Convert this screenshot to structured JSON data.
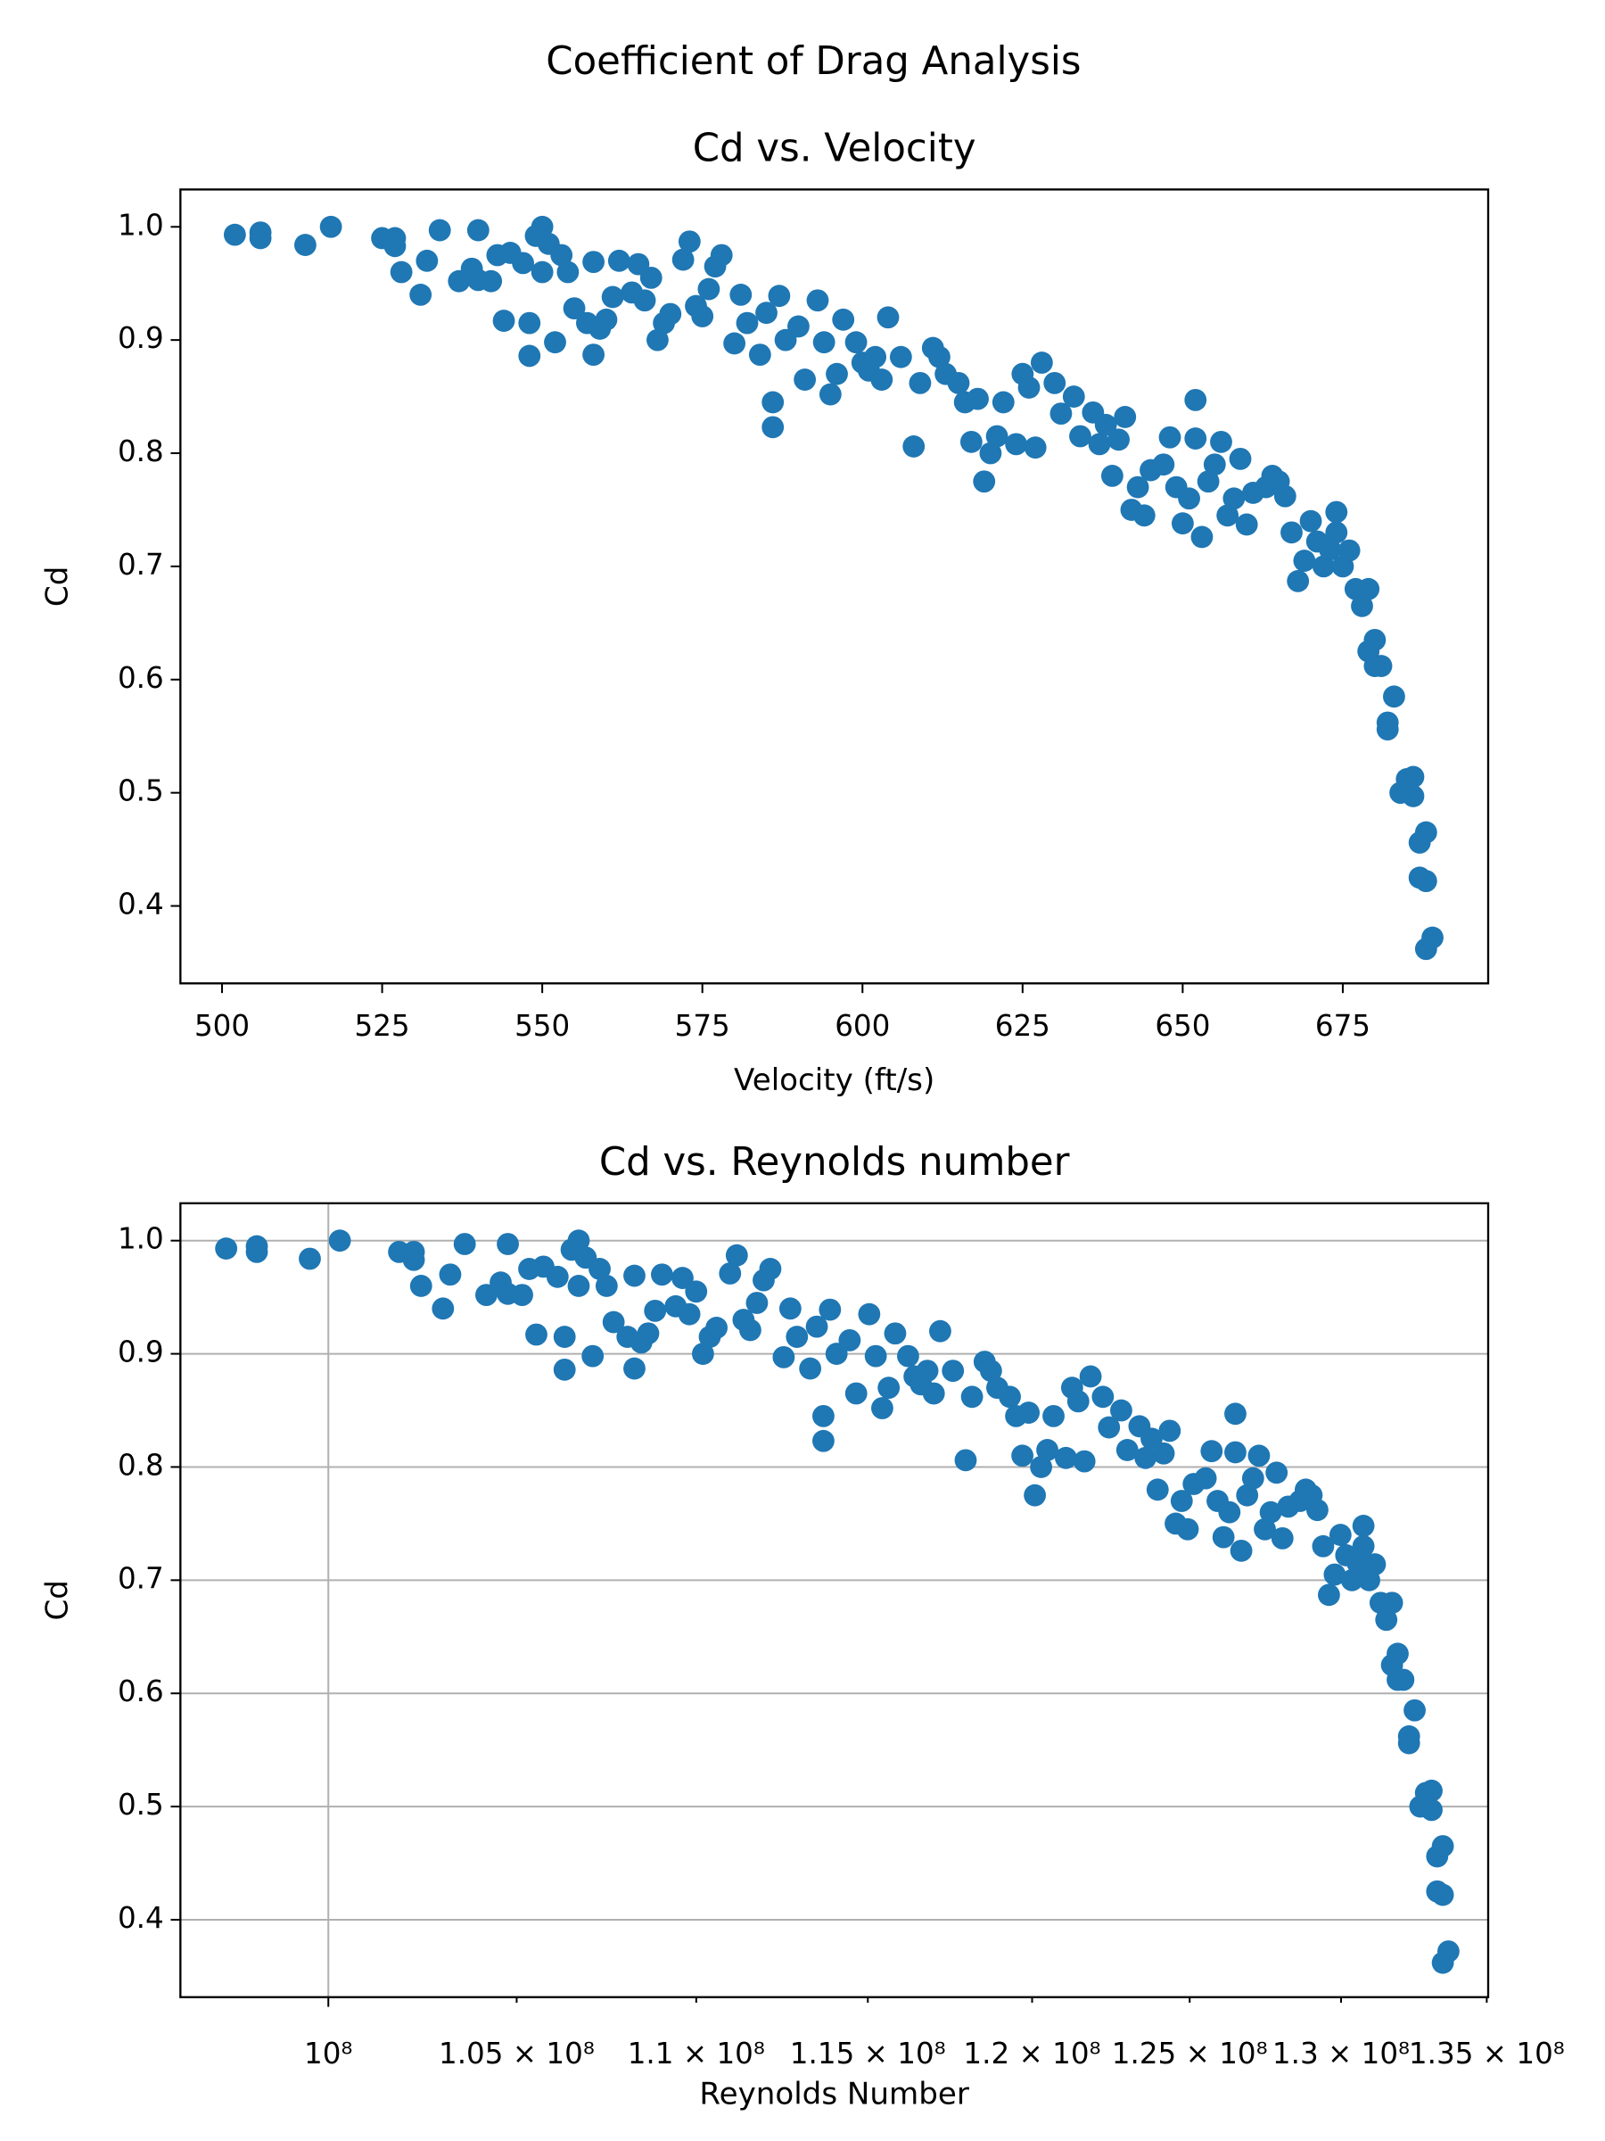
{
  "suptitle": "Coefficient of Drag Analysis",
  "chart_data": [
    {
      "type": "scatter",
      "title": "Cd vs. Velocity",
      "xlabel": "Velocity (ft/s)",
      "ylabel": "Cd",
      "color": "#1f77b4",
      "grid": false,
      "xscale": "linear",
      "xlim": [
        493.5,
        697.7
      ],
      "ylim": [
        0.3316,
        1.033
      ],
      "xticks": [
        500,
        525,
        550,
        575,
        600,
        625,
        650,
        675
      ],
      "yticks": [
        0.4,
        0.5,
        0.6,
        0.7,
        0.8,
        0.9,
        {
          "value": 1,
          "label": "1.0"
        }
      ],
      "x": [
        502,
        506,
        506,
        513,
        517,
        525,
        527,
        527,
        528,
        531,
        532,
        534,
        537,
        539,
        540,
        540,
        542,
        543,
        544,
        545,
        547,
        548,
        548,
        549,
        550,
        550,
        551,
        552,
        553,
        554,
        555,
        557,
        558,
        558,
        559,
        560,
        561,
        562,
        564,
        565,
        566,
        567,
        568,
        569,
        570,
        572,
        573,
        574,
        575,
        576,
        577,
        578,
        580,
        581,
        582,
        584,
        585,
        586,
        586,
        587,
        588,
        590,
        591,
        593,
        594,
        595,
        596,
        597,
        599,
        600,
        601,
        602,
        603,
        604,
        606,
        608,
        609,
        611,
        612,
        613,
        615,
        616,
        617,
        618,
        619,
        620,
        621,
        622,
        624,
        625,
        626,
        627,
        628,
        630,
        631,
        633,
        634,
        636,
        637,
        638,
        639,
        640,
        641,
        642,
        643,
        644,
        645,
        647,
        648,
        649,
        650,
        651,
        652,
        652,
        653,
        654,
        655,
        656,
        657,
        658,
        659,
        660,
        661,
        663,
        664,
        665,
        666,
        667,
        668,
        669,
        670,
        671,
        672,
        673,
        674,
        674,
        675,
        676,
        677,
        678,
        679,
        679,
        680,
        680,
        681,
        682,
        682,
        683,
        684,
        685,
        686,
        686,
        687,
        687,
        688,
        688,
        688,
        689
      ],
      "y": [
        0.993,
        0.995,
        0.99,
        0.984,
        1.0,
        0.99,
        0.99,
        0.983,
        0.96,
        0.94,
        0.97,
        0.997,
        0.952,
        0.963,
        0.997,
        0.953,
        0.952,
        0.975,
        0.917,
        0.977,
        0.968,
        0.886,
        0.915,
        0.992,
        0.96,
        1.0,
        0.985,
        0.898,
        0.975,
        0.96,
        0.928,
        0.915,
        0.969,
        0.887,
        0.91,
        0.918,
        0.938,
        0.97,
        0.942,
        0.967,
        0.935,
        0.955,
        0.9,
        0.915,
        0.923,
        0.971,
        0.987,
        0.93,
        0.921,
        0.945,
        0.965,
        0.975,
        0.897,
        0.94,
        0.915,
        0.887,
        0.924,
        0.823,
        0.845,
        0.939,
        0.9,
        0.912,
        0.865,
        0.935,
        0.898,
        0.852,
        0.87,
        0.918,
        0.898,
        0.88,
        0.873,
        0.885,
        0.865,
        0.92,
        0.885,
        0.806,
        0.862,
        0.893,
        0.885,
        0.87,
        0.862,
        0.845,
        0.81,
        0.848,
        0.775,
        0.8,
        0.815,
        0.845,
        0.808,
        0.87,
        0.858,
        0.805,
        0.88,
        0.862,
        0.835,
        0.85,
        0.815,
        0.836,
        0.808,
        0.825,
        0.78,
        0.812,
        0.832,
        0.75,
        0.77,
        0.745,
        0.785,
        0.79,
        0.814,
        0.77,
        0.738,
        0.76,
        0.847,
        0.813,
        0.726,
        0.775,
        0.79,
        0.81,
        0.745,
        0.76,
        0.795,
        0.737,
        0.765,
        0.77,
        0.78,
        0.775,
        0.762,
        0.73,
        0.687,
        0.705,
        0.74,
        0.722,
        0.7,
        0.715,
        0.73,
        0.748,
        0.7,
        0.714,
        0.68,
        0.665,
        0.68,
        0.625,
        0.635,
        0.612,
        0.612,
        0.562,
        0.556,
        0.585,
        0.5,
        0.512,
        0.514,
        0.497,
        0.425,
        0.456,
        0.465,
        0.422,
        0.362,
        0.372
      ]
    },
    {
      "type": "scatter",
      "title": "Cd vs. Reynolds number",
      "xlabel": "Reynolds Number",
      "ylabel": "Cd",
      "color": "#1f77b4",
      "grid": true,
      "xscale": "log",
      "xlim": [
        96240000,
        135050000
      ],
      "ylim": [
        0.3316,
        1.033
      ],
      "xticks": [
        {
          "value": 100000000,
          "label": "10⁸"
        },
        {
          "value": 105000000,
          "label": "1.05 × 10⁸"
        },
        {
          "value": 110000000,
          "label": "1.1 × 10⁸"
        },
        {
          "value": 115000000,
          "label": "1.15 × 10⁸"
        },
        {
          "value": 120000000,
          "label": "1.2 × 10⁸"
        },
        {
          "value": 125000000,
          "label": "1.25 × 10⁸"
        },
        {
          "value": 130000000,
          "label": "1.3 × 10⁸"
        },
        {
          "value": 135000000,
          "label": "1.35 × 10⁸"
        }
      ],
      "yticks": [
        0.4,
        0.5,
        0.6,
        0.7,
        0.8,
        0.9,
        {
          "value": 1,
          "label": "1.0"
        }
      ],
      "x": [
        97388000,
        98164000,
        98164000,
        99522000,
        100298000,
        101850000,
        102238000,
        102238000,
        102432000,
        103014000,
        103208000,
        103596000,
        104178000,
        104566000,
        104760000,
        104760000,
        105148000,
        105342000,
        105536000,
        105730000,
        106118000,
        106312000,
        106312000,
        106506000,
        106700000,
        106700000,
        106894000,
        107088000,
        107282000,
        107476000,
        107670000,
        108058000,
        108252000,
        108252000,
        108446000,
        108640000,
        108834000,
        109028000,
        109416000,
        109610000,
        109804000,
        109998000,
        110192000,
        110386000,
        110580000,
        110968000,
        111162000,
        111356000,
        111550000,
        111744000,
        111938000,
        112132000,
        112520000,
        112714000,
        112908000,
        113296000,
        113490000,
        113684000,
        113684000,
        113878000,
        114072000,
        114460000,
        114654000,
        115042000,
        115236000,
        115430000,
        115624000,
        115818000,
        116206000,
        116400000,
        116594000,
        116788000,
        116982000,
        117176000,
        117564000,
        117952000,
        118146000,
        118534000,
        118728000,
        118922000,
        119310000,
        119504000,
        119698000,
        119892000,
        120086000,
        120280000,
        120474000,
        120668000,
        121056000,
        121250000,
        121444000,
        121638000,
        121832000,
        122220000,
        122414000,
        122802000,
        122996000,
        123384000,
        123578000,
        123772000,
        123966000,
        124160000,
        124354000,
        124548000,
        124742000,
        124936000,
        125130000,
        125518000,
        125712000,
        125906000,
        126100000,
        126294000,
        126488000,
        126488000,
        126682000,
        126876000,
        127070000,
        127264000,
        127458000,
        127652000,
        127846000,
        128040000,
        128234000,
        128622000,
        128816000,
        129010000,
        129204000,
        129398000,
        129592000,
        129786000,
        129980000,
        130174000,
        130368000,
        130562000,
        130756000,
        130756000,
        130950000,
        131144000,
        131338000,
        131532000,
        131726000,
        131726000,
        131920000,
        131920000,
        132114000,
        132308000,
        132308000,
        132502000,
        132696000,
        132890000,
        133084000,
        133084000,
        133278000,
        133278000,
        133472000,
        133472000,
        133472000,
        133666000
      ],
      "y": [
        0.993,
        0.995,
        0.99,
        0.984,
        1.0,
        0.99,
        0.99,
        0.983,
        0.96,
        0.94,
        0.97,
        0.997,
        0.952,
        0.963,
        0.997,
        0.953,
        0.952,
        0.975,
        0.917,
        0.977,
        0.968,
        0.886,
        0.915,
        0.992,
        0.96,
        1.0,
        0.985,
        0.898,
        0.975,
        0.96,
        0.928,
        0.915,
        0.969,
        0.887,
        0.91,
        0.918,
        0.938,
        0.97,
        0.942,
        0.967,
        0.935,
        0.955,
        0.9,
        0.915,
        0.923,
        0.971,
        0.987,
        0.93,
        0.921,
        0.945,
        0.965,
        0.975,
        0.897,
        0.94,
        0.915,
        0.887,
        0.924,
        0.823,
        0.845,
        0.939,
        0.9,
        0.912,
        0.865,
        0.935,
        0.898,
        0.852,
        0.87,
        0.918,
        0.898,
        0.88,
        0.873,
        0.885,
        0.865,
        0.92,
        0.885,
        0.806,
        0.862,
        0.893,
        0.885,
        0.87,
        0.862,
        0.845,
        0.81,
        0.848,
        0.775,
        0.8,
        0.815,
        0.845,
        0.808,
        0.87,
        0.858,
        0.805,
        0.88,
        0.862,
        0.835,
        0.85,
        0.815,
        0.836,
        0.808,
        0.825,
        0.78,
        0.812,
        0.832,
        0.75,
        0.77,
        0.745,
        0.785,
        0.79,
        0.814,
        0.77,
        0.738,
        0.76,
        0.847,
        0.813,
        0.726,
        0.775,
        0.79,
        0.81,
        0.745,
        0.76,
        0.795,
        0.737,
        0.765,
        0.77,
        0.78,
        0.775,
        0.762,
        0.73,
        0.687,
        0.705,
        0.74,
        0.722,
        0.7,
        0.715,
        0.73,
        0.748,
        0.7,
        0.714,
        0.68,
        0.665,
        0.68,
        0.625,
        0.635,
        0.612,
        0.612,
        0.562,
        0.556,
        0.585,
        0.5,
        0.512,
        0.514,
        0.497,
        0.425,
        0.456,
        0.465,
        0.422,
        0.362,
        0.372
      ]
    }
  ]
}
